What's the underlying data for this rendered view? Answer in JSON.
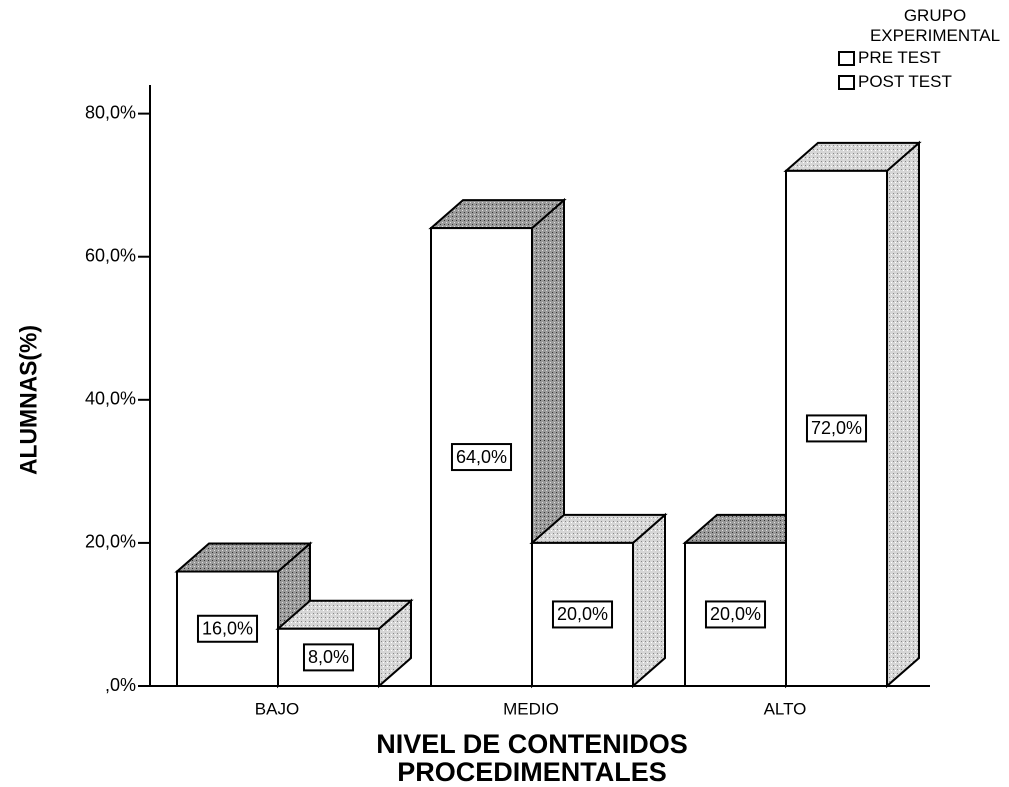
{
  "chart_data": {
    "type": "bar3d",
    "y_label": "ALUMNAS(%)",
    "x_label": "NIVEL DE CONTENIDOS PROCEDIMENTALES",
    "legend_title": "GRUPO EXPERIMENTAL",
    "legend": "top-right",
    "categories": [
      "BAJO",
      "MEDIO",
      "ALTO"
    ],
    "series": [
      {
        "name": "PRE TEST",
        "color": "#ffffff",
        "values": [
          16,
          64,
          20
        ],
        "value_labels": [
          "16,0%",
          "64,0%",
          "20,0%"
        ]
      },
      {
        "name": "POST TEST",
        "color": "#ffffff",
        "values": [
          8,
          20,
          72
        ],
        "value_labels": [
          "8,0%",
          "20,0%",
          "72,0%"
        ]
      }
    ],
    "ylim": [
      0,
      84
    ],
    "yticks": [
      {
        "value": 0,
        "label": ",0%"
      },
      {
        "value": 20,
        "label": "20,0%"
      },
      {
        "value": 40,
        "label": "40,0%"
      },
      {
        "value": 60,
        "label": "60,0%"
      },
      {
        "value": 80,
        "label": "80,0%"
      }
    ]
  }
}
